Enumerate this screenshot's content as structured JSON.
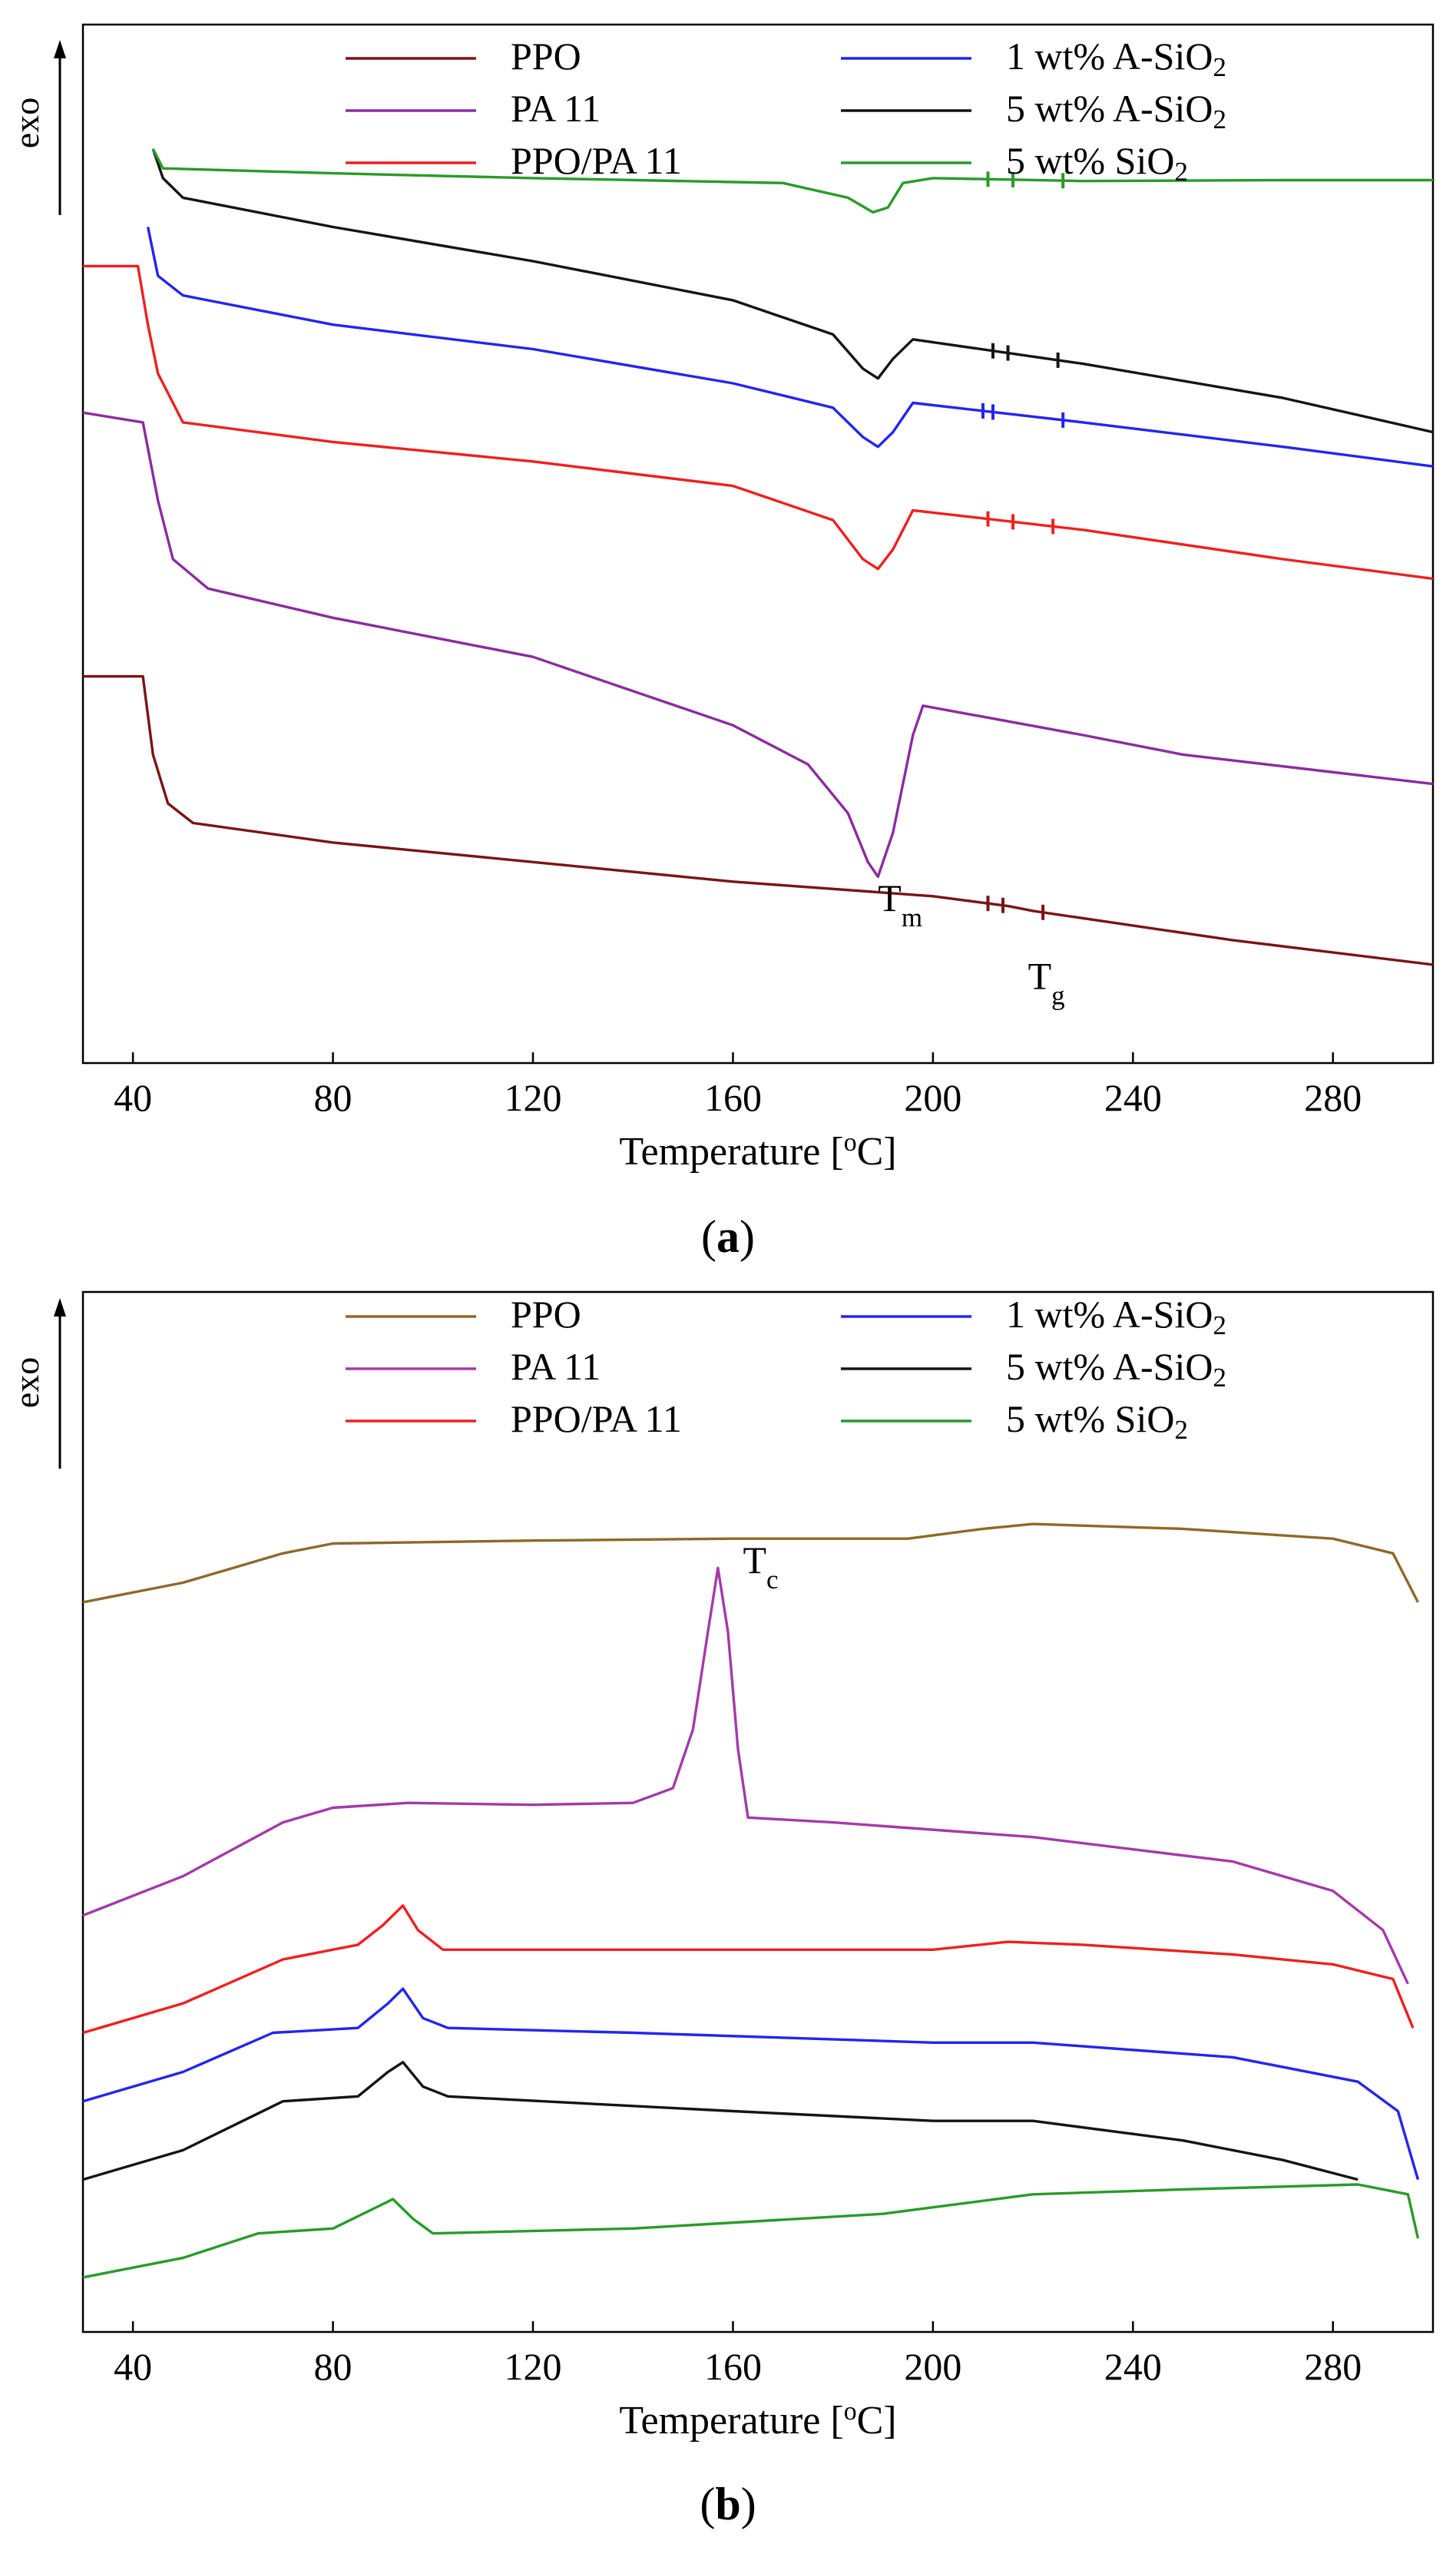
{
  "chart_data": [
    {
      "type": "line",
      "panel_label": "a",
      "xlabel": "Temperature [°C]",
      "ylabel": "exo",
      "xlim": [
        30,
        300
      ],
      "ylim": [
        0,
        100
      ],
      "xticks": [
        40,
        80,
        120,
        160,
        200,
        240,
        280
      ],
      "grid": false,
      "legend": {
        "placement": "top",
        "columns": 2
      },
      "annotations": [
        {
          "main": "T",
          "sub": "m",
          "x": 189,
          "y": 14
        },
        {
          "main": "T",
          "sub": "g",
          "x": 219,
          "y": 6
        }
      ],
      "series": [
        {
          "name": "PPO",
          "color": "#7a1416",
          "points": [
            [
              30,
              38
            ],
            [
              42,
              38
            ],
            [
              44,
              30
            ],
            [
              47,
              25
            ],
            [
              52,
              23
            ],
            [
              80,
              21
            ],
            [
              120,
              19
            ],
            [
              160,
              17
            ],
            [
              200,
              15.5
            ],
            [
              215,
              14.5
            ],
            [
              220,
              14
            ],
            [
              260,
              11
            ],
            [
              300,
              8.5
            ]
          ],
          "ticks": [
            211,
            214,
            222
          ]
        },
        {
          "name": "PA 11",
          "color": "#8b2c9f",
          "points": [
            [
              30,
              65
            ],
            [
              42,
              64
            ],
            [
              45,
              56
            ],
            [
              48,
              50
            ],
            [
              55,
              47
            ],
            [
              80,
              44
            ],
            [
              120,
              40
            ],
            [
              160,
              33
            ],
            [
              175,
              29
            ],
            [
              183,
              24
            ],
            [
              187,
              19
            ],
            [
              189,
              17.5
            ],
            [
              192,
              22
            ],
            [
              196,
              32
            ],
            [
              198,
              35
            ],
            [
              230,
              32
            ],
            [
              250,
              30
            ],
            [
              300,
              27
            ]
          ],
          "ticks": []
        },
        {
          "name": "PPO/PA 11",
          "color": "#ee2020",
          "points": [
            [
              30,
              80
            ],
            [
              41,
              80
            ],
            [
              43,
              74
            ],
            [
              45,
              69
            ],
            [
              50,
              64
            ],
            [
              80,
              62
            ],
            [
              120,
              60
            ],
            [
              160,
              57.5
            ],
            [
              180,
              54
            ],
            [
              186,
              50
            ],
            [
              189,
              49
            ],
            [
              192,
              51
            ],
            [
              196,
              55
            ],
            [
              230,
              53
            ],
            [
              270,
              50
            ],
            [
              300,
              48
            ]
          ],
          "ticks": [
            211,
            216,
            224
          ]
        },
        {
          "name": "1 wt% A-SiO2",
          "color": "#2424f0",
          "points": [
            [
              43,
              84
            ],
            [
              45,
              79
            ],
            [
              50,
              77
            ],
            [
              80,
              74
            ],
            [
              120,
              71.5
            ],
            [
              160,
              68
            ],
            [
              180,
              65.5
            ],
            [
              186,
              62.5
            ],
            [
              189,
              61.5
            ],
            [
              192,
              63
            ],
            [
              196,
              66
            ],
            [
              230,
              64
            ],
            [
              270,
              61.5
            ],
            [
              300,
              59.5
            ]
          ],
          "ticks": [
            210,
            212,
            226
          ]
        },
        {
          "name": "5 wt% A-SiO2",
          "color": "#141414",
          "points": [
            [
              44,
              92
            ],
            [
              46,
              89
            ],
            [
              50,
              87
            ],
            [
              80,
              84
            ],
            [
              120,
              80.5
            ],
            [
              160,
              76.5
            ],
            [
              180,
              73
            ],
            [
              186,
              69.5
            ],
            [
              189,
              68.5
            ],
            [
              192,
              70.5
            ],
            [
              196,
              72.5
            ],
            [
              230,
              70
            ],
            [
              270,
              66.5
            ],
            [
              300,
              63
            ]
          ],
          "ticks": [
            212,
            215,
            225
          ]
        },
        {
          "name": "5 wt% SiO2",
          "color": "#2a9a2a",
          "points": [
            [
              44,
              92
            ],
            [
              46,
              90
            ],
            [
              80,
              89.5
            ],
            [
              120,
              89
            ],
            [
              170,
              88.5
            ],
            [
              183,
              87
            ],
            [
              188,
              85.5
            ],
            [
              191,
              86
            ],
            [
              194,
              88.5
            ],
            [
              200,
              89
            ],
            [
              230,
              88.7
            ],
            [
              270,
              88.8
            ],
            [
              300,
              88.8
            ]
          ],
          "ticks": [
            211,
            216,
            226
          ]
        }
      ]
    },
    {
      "type": "line",
      "panel_label": "b",
      "xlabel": "Temperature [°C]",
      "ylabel": "exo",
      "xlim": [
        30,
        300
      ],
      "ylim": [
        0,
        100
      ],
      "xticks": [
        40,
        80,
        120,
        160,
        200,
        240,
        280
      ],
      "grid": false,
      "legend": {
        "placement": "top",
        "columns": 2
      },
      "annotations": [
        {
          "main": "T",
          "sub": "c",
          "x": 162,
          "y": 76
        }
      ],
      "series": [
        {
          "name": "PPO",
          "color": "#8c6a28",
          "points": [
            [
              30,
              73
            ],
            [
              50,
              75
            ],
            [
              70,
              78
            ],
            [
              80,
              79
            ],
            [
              120,
              79.3
            ],
            [
              160,
              79.5
            ],
            [
              195,
              79.5
            ],
            [
              210,
              80.5
            ],
            [
              220,
              81
            ],
            [
              250,
              80.5
            ],
            [
              280,
              79.5
            ],
            [
              292,
              78
            ],
            [
              297,
              73
            ]
          ]
        },
        {
          "name": "PA 11",
          "color": "#a33aa8",
          "points": [
            [
              30,
              41
            ],
            [
              50,
              45
            ],
            [
              70,
              50.5
            ],
            [
              80,
              52
            ],
            [
              95,
              52.5
            ],
            [
              120,
              52.3
            ],
            [
              140,
              52.5
            ],
            [
              148,
              54
            ],
            [
              152,
              60
            ],
            [
              155,
              70
            ],
            [
              157,
              76.5
            ],
            [
              159,
              70
            ],
            [
              161,
              58
            ],
            [
              163,
              51
            ],
            [
              180,
              50.5
            ],
            [
              220,
              49
            ],
            [
              260,
              46.5
            ],
            [
              280,
              43.5
            ],
            [
              290,
              39.5
            ],
            [
              295,
              34
            ]
          ]
        },
        {
          "name": "PPO/PA 11",
          "color": "#ee2020",
          "points": [
            [
              30,
              29
            ],
            [
              50,
              32
            ],
            [
              70,
              36.5
            ],
            [
              85,
              38
            ],
            [
              90,
              40
            ],
            [
              94,
              42
            ],
            [
              97,
              39.5
            ],
            [
              102,
              37.5
            ],
            [
              140,
              37.5
            ],
            [
              200,
              37.5
            ],
            [
              215,
              38.3
            ],
            [
              230,
              38
            ],
            [
              260,
              37
            ],
            [
              280,
              36
            ],
            [
              292,
              34.5
            ],
            [
              296,
              29.5
            ]
          ]
        },
        {
          "name": "1 wt% A-SiO2",
          "color": "#2424f0",
          "points": [
            [
              30,
              22
            ],
            [
              50,
              25
            ],
            [
              68,
              29
            ],
            [
              85,
              29.5
            ],
            [
              91,
              32
            ],
            [
              94,
              33.5
            ],
            [
              98,
              30.5
            ],
            [
              103,
              29.5
            ],
            [
              140,
              29
            ],
            [
              200,
              28
            ],
            [
              220,
              28
            ],
            [
              260,
              26.5
            ],
            [
              285,
              24
            ],
            [
              293,
              21
            ],
            [
              297,
              14
            ]
          ]
        },
        {
          "name": "5 wt% A-SiO2",
          "color": "#141414",
          "points": [
            [
              30,
              14
            ],
            [
              50,
              17
            ],
            [
              70,
              22
            ],
            [
              85,
              22.5
            ],
            [
              91,
              25
            ],
            [
              94,
              26
            ],
            [
              98,
              23.5
            ],
            [
              103,
              22.5
            ],
            [
              160,
              21
            ],
            [
              200,
              20
            ],
            [
              220,
              20
            ],
            [
              250,
              18
            ],
            [
              270,
              16
            ],
            [
              285,
              14
            ]
          ]
        },
        {
          "name": "5 wt% SiO2",
          "color": "#2a9a2a",
          "points": [
            [
              30,
              4
            ],
            [
              50,
              6
            ],
            [
              65,
              8.5
            ],
            [
              80,
              9
            ],
            [
              88,
              11
            ],
            [
              92,
              12
            ],
            [
              96,
              10
            ],
            [
              100,
              8.5
            ],
            [
              140,
              9
            ],
            [
              190,
              10.5
            ],
            [
              220,
              12.5
            ],
            [
              250,
              13
            ],
            [
              285,
              13.5
            ],
            [
              295,
              12.5
            ],
            [
              297,
              8
            ]
          ]
        }
      ]
    }
  ]
}
